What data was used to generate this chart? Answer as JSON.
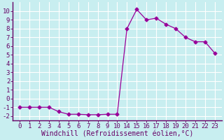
{
  "x_indices": [
    0,
    1,
    2,
    3,
    4,
    5,
    6,
    7,
    8,
    9,
    10,
    11,
    12,
    13,
    14,
    15,
    16,
    17,
    18,
    19,
    20
  ],
  "x_labels": [
    "0",
    "1",
    "2",
    "3",
    "4",
    "5",
    "6",
    "7",
    "8",
    "9",
    "10",
    "14",
    "15",
    "16",
    "17",
    "18",
    "19",
    "20",
    "21",
    "22",
    "23"
  ],
  "y": [
    -1,
    -1,
    -1,
    -1,
    -1.5,
    -1.8,
    -1.8,
    -1.85,
    -1.85,
    -1.8,
    -1.8,
    8,
    10.2,
    9,
    9.2,
    8.5,
    8,
    7,
    6.5,
    6.5,
    5.2
  ],
  "line_color": "#990099",
  "marker": "D",
  "marker_size": 2.5,
  "bg_color": "#c8eef0",
  "grid_color": "#ffffff",
  "xlabel": "Windchill (Refroidissement éolien,°C)",
  "ylim": [
    -2.5,
    11
  ],
  "yticks": [
    -2,
    -1,
    0,
    1,
    2,
    3,
    4,
    5,
    6,
    7,
    8,
    9,
    10
  ],
  "xlabel_fontsize": 7,
  "tick_fontsize": 6.5,
  "axis_color": "#660066"
}
